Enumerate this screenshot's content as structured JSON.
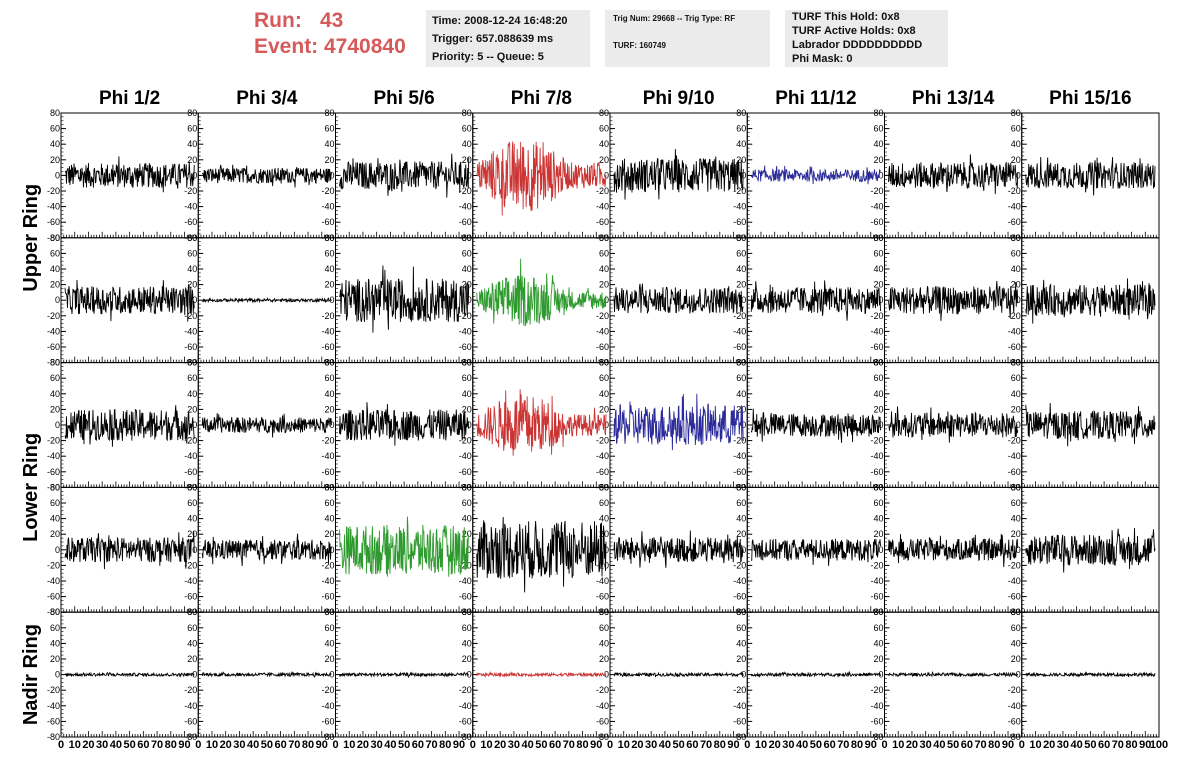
{
  "header": {
    "run_label": "Run:",
    "run_value": "43",
    "event_label": "Event:",
    "event_value": "4740840",
    "box1": [
      "Time: 2008-12-24 16:48:20",
      "Trigger: 657.088639 ms",
      "Priority: 5 -- Queue: 5"
    ],
    "box2": [
      "Trig Num: 29668 -- Trig Type: RF",
      "TURF: 160749"
    ],
    "box3": [
      "TURF This Hold: 0x8",
      "TURF Active Holds: 0x8",
      "Labrador DDDDDDDDDD",
      "Phi Mask: 0"
    ]
  },
  "chart_data": {
    "type": "line",
    "columns": [
      "Phi 1/2",
      "Phi 3/4",
      "Phi 5/6",
      "Phi 7/8",
      "Phi 9/10",
      "Phi 11/12",
      "Phi 13/14",
      "Phi 15/16"
    ],
    "ring_labels": [
      "Upper Ring",
      "Lower Ring",
      "Nadir Ring"
    ],
    "rows_per_ring": [
      2,
      2,
      1
    ],
    "ylim": [
      -80,
      80
    ],
    "y_ticks": [
      80,
      60,
      40,
      20,
      0,
      -20,
      -40,
      -60,
      -80
    ],
    "xlim": [
      0,
      100
    ],
    "x_tick_labels": [
      "0",
      "10",
      "20",
      "30",
      "40",
      "50",
      "60",
      "70",
      "80",
      "90",
      "100"
    ],
    "colors": {
      "normal": "#000000",
      "red": "#cc3333",
      "green": "#2e9a2e",
      "blue": "#2b2b9a"
    },
    "panels": [
      {
        "row": 0,
        "col": 0,
        "amp": 16,
        "color": "normal"
      },
      {
        "row": 0,
        "col": 1,
        "amp": 10,
        "color": "normal"
      },
      {
        "row": 0,
        "col": 2,
        "amp": 18,
        "color": "normal"
      },
      {
        "row": 0,
        "col": 3,
        "amp": 48,
        "color": "red",
        "envelope": true
      },
      {
        "row": 0,
        "col": 4,
        "amp": 22,
        "color": "normal"
      },
      {
        "row": 0,
        "col": 5,
        "amp": 8,
        "color": "blue"
      },
      {
        "row": 0,
        "col": 6,
        "amp": 17,
        "color": "normal"
      },
      {
        "row": 0,
        "col": 7,
        "amp": 17,
        "color": "normal"
      },
      {
        "row": 1,
        "col": 0,
        "amp": 18,
        "color": "normal"
      },
      {
        "row": 1,
        "col": 1,
        "amp": 2,
        "color": "normal"
      },
      {
        "row": 1,
        "col": 2,
        "amp": 28,
        "color": "normal"
      },
      {
        "row": 1,
        "col": 3,
        "amp": 34,
        "color": "green",
        "envelope": true
      },
      {
        "row": 1,
        "col": 4,
        "amp": 17,
        "color": "normal"
      },
      {
        "row": 1,
        "col": 5,
        "amp": 17,
        "color": "normal"
      },
      {
        "row": 1,
        "col": 6,
        "amp": 18,
        "color": "normal"
      },
      {
        "row": 1,
        "col": 7,
        "amp": 20,
        "color": "normal"
      },
      {
        "row": 2,
        "col": 0,
        "amp": 20,
        "color": "normal"
      },
      {
        "row": 2,
        "col": 1,
        "amp": 10,
        "color": "normal"
      },
      {
        "row": 2,
        "col": 2,
        "amp": 20,
        "color": "normal"
      },
      {
        "row": 2,
        "col": 3,
        "amp": 40,
        "color": "red",
        "envelope": true
      },
      {
        "row": 2,
        "col": 4,
        "amp": 26,
        "color": "blue"
      },
      {
        "row": 2,
        "col": 5,
        "amp": 15,
        "color": "normal"
      },
      {
        "row": 2,
        "col": 6,
        "amp": 16,
        "color": "normal"
      },
      {
        "row": 2,
        "col": 7,
        "amp": 18,
        "color": "normal"
      },
      {
        "row": 3,
        "col": 0,
        "amp": 16,
        "color": "normal"
      },
      {
        "row": 3,
        "col": 1,
        "amp": 13,
        "color": "normal"
      },
      {
        "row": 3,
        "col": 2,
        "amp": 32,
        "color": "green"
      },
      {
        "row": 3,
        "col": 3,
        "amp": 38,
        "color": "normal"
      },
      {
        "row": 3,
        "col": 4,
        "amp": 16,
        "color": "normal"
      },
      {
        "row": 3,
        "col": 5,
        "amp": 14,
        "color": "normal"
      },
      {
        "row": 3,
        "col": 6,
        "amp": 14,
        "color": "normal"
      },
      {
        "row": 3,
        "col": 7,
        "amp": 20,
        "color": "normal"
      },
      {
        "row": 4,
        "col": 0,
        "amp": 2,
        "color": "normal"
      },
      {
        "row": 4,
        "col": 1,
        "amp": 2,
        "color": "normal"
      },
      {
        "row": 4,
        "col": 2,
        "amp": 2,
        "color": "normal"
      },
      {
        "row": 4,
        "col": 3,
        "amp": 2,
        "color": "red"
      },
      {
        "row": 4,
        "col": 4,
        "amp": 2,
        "color": "normal"
      },
      {
        "row": 4,
        "col": 5,
        "amp": 2,
        "color": "normal"
      },
      {
        "row": 4,
        "col": 6,
        "amp": 2,
        "color": "normal"
      },
      {
        "row": 4,
        "col": 7,
        "amp": 2,
        "color": "normal"
      }
    ]
  }
}
